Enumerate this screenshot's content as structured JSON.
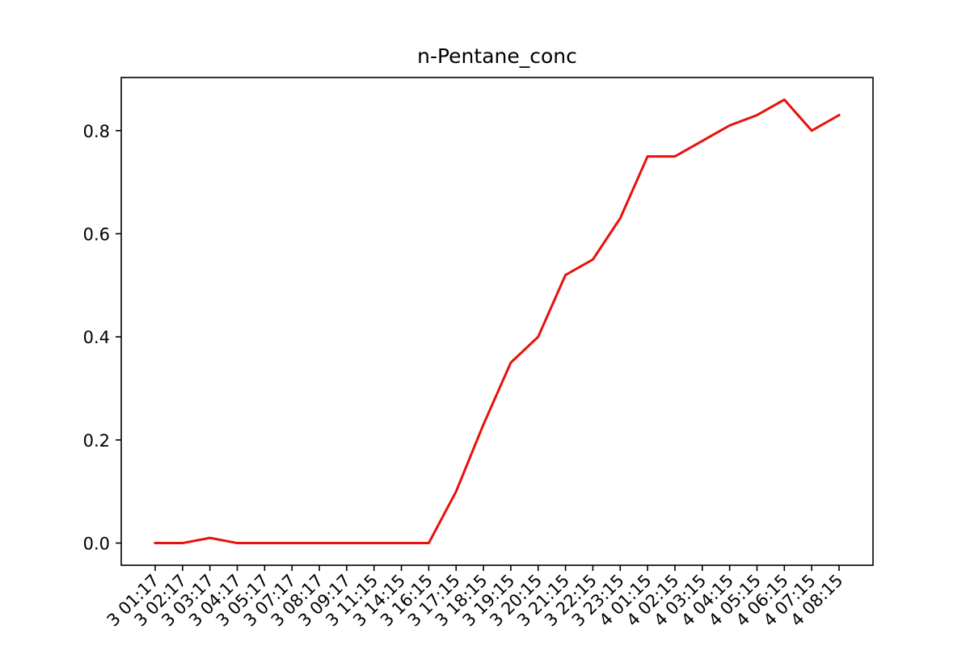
{
  "chart_data": {
    "type": "line",
    "title": "n-Pentane_conc",
    "xlabel": "",
    "ylabel": "",
    "categories": [
      "3 01:17",
      "3 02:17",
      "3 03:17",
      "3 04:17",
      "3 05:17",
      "3 07:17",
      "3 08:17",
      "3 09:17",
      "3 11:15",
      "3 14:15",
      "3 16:15",
      "3 17:15",
      "3 18:15",
      "3 19:15",
      "3 20:15",
      "3 21:15",
      "3 22:15",
      "3 23:15",
      "4 01:15",
      "4 02:15",
      "4 03:15",
      "4 04:15",
      "4 05:15",
      "4 06:15",
      "4 07:15",
      "4 08:15"
    ],
    "series": [
      {
        "color": "#e8100a",
        "values": [
          0.0,
          0.0,
          0.01,
          0.0,
          0.0,
          0.0,
          0.0,
          0.0,
          0.0,
          0.0,
          0.0,
          0.1,
          0.23,
          0.35,
          0.4,
          0.52,
          0.55,
          0.63,
          0.75,
          0.75,
          0.78,
          0.81,
          0.83,
          0.86,
          0.8,
          0.83
        ]
      }
    ],
    "yticks": [
      0.0,
      0.2,
      0.4,
      0.6,
      0.8
    ],
    "ytick_labels": [
      "0.0",
      "0.2",
      "0.4",
      "0.6",
      "0.8"
    ],
    "ylim": [
      -0.043,
      0.903
    ],
    "grid": false,
    "xtick_rotation_deg": 45
  }
}
